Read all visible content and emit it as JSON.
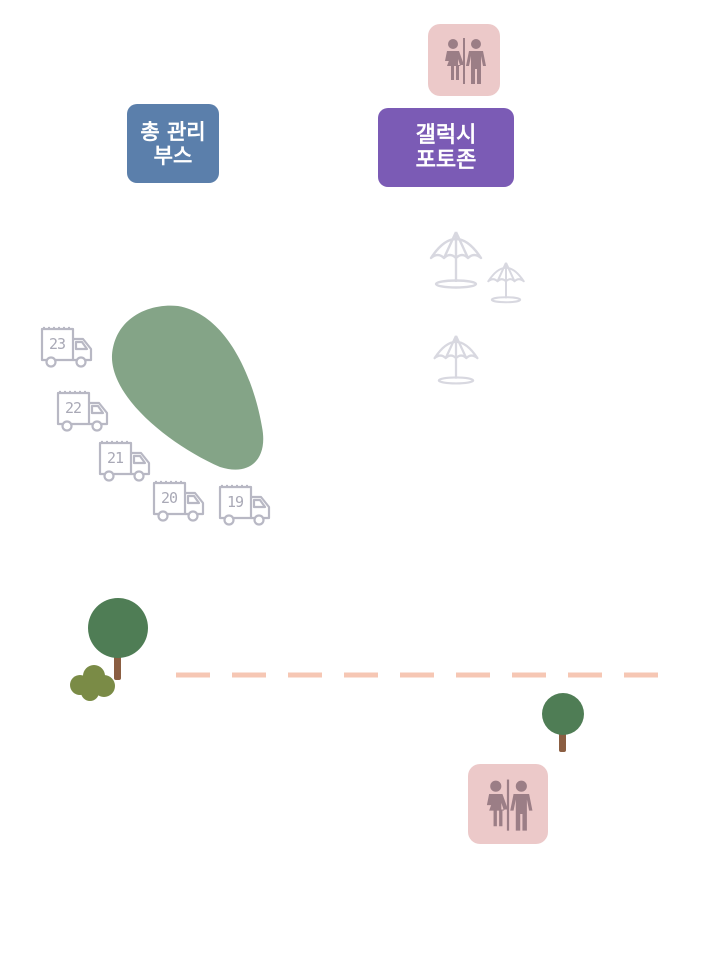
{
  "booths": {
    "management": {
      "line1": "총 관리",
      "line2": "부스",
      "color": "#5b7fab"
    },
    "photozone": {
      "line1": "갤럭시",
      "line2": "포토존",
      "color": "#7b5bb5"
    }
  },
  "restroom": {
    "icon": "restroom-icon",
    "background": "#ecc9c9",
    "figure_color": "#9b7e86"
  },
  "food_trucks": [
    "23",
    "22",
    "21",
    "20",
    "19"
  ],
  "umbrella": {
    "icon": "parasol-icon",
    "color": "#d8d8e0"
  },
  "colors": {
    "lawn": "#84a487",
    "tree_canopy": "#4f7d55",
    "tree_trunk": "#8b5e42",
    "bush": "#7a8b46",
    "path_dashes": "#f6c7b4",
    "truck_outline": "#b8b8c4"
  }
}
